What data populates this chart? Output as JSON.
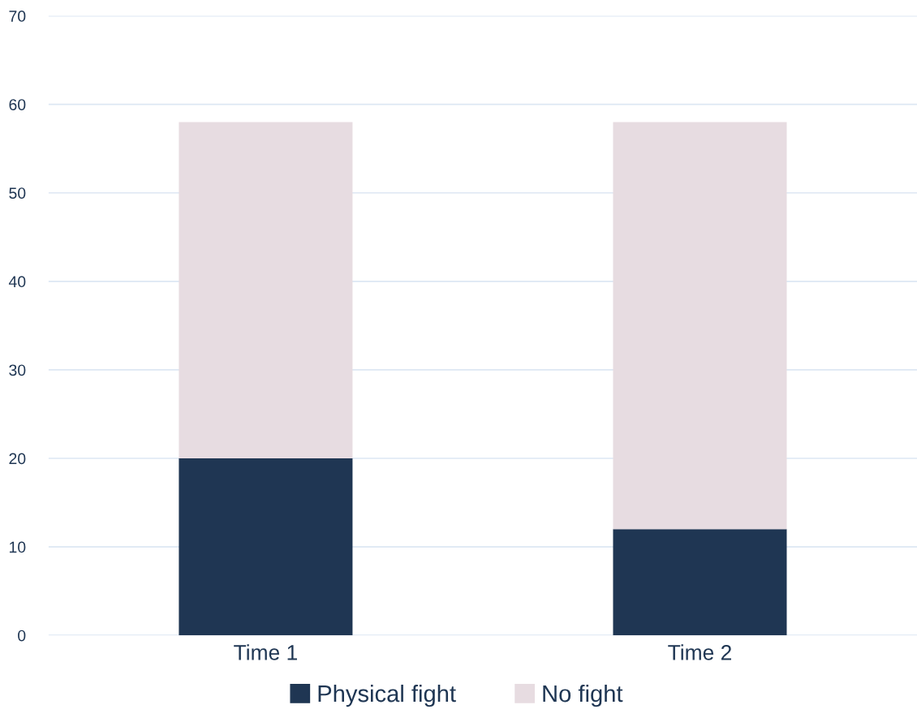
{
  "chart_data": {
    "type": "bar",
    "stacked": true,
    "categories": [
      "Time 1",
      "Time 2"
    ],
    "series": [
      {
        "name": "Physical fight",
        "color": "#1f3653",
        "values": [
          20,
          12
        ]
      },
      {
        "name": "No fight",
        "color": "#e7dce1",
        "values": [
          38,
          46
        ]
      }
    ],
    "ylim": [
      0,
      70
    ],
    "yticks": [
      0,
      10,
      20,
      30,
      40,
      50,
      60,
      70
    ],
    "grid": "y",
    "legend": "bottom"
  }
}
